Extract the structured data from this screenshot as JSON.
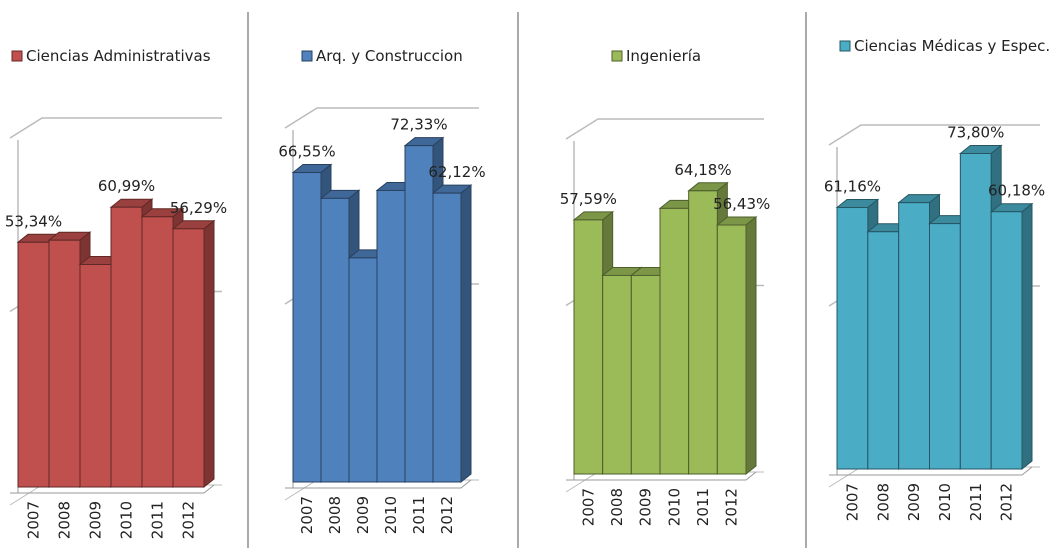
{
  "chart_data": [
    {
      "type": "bar3d",
      "categories": [
        "2007",
        "2008",
        "2009",
        "2010",
        "2011",
        "2012"
      ],
      "series": [
        {
          "name": "Ciencias Administrativas",
          "color": "#c0504d",
          "values": [
            53.34,
            53.8,
            48.5,
            60.99,
            58.9,
            56.29
          ],
          "value_labels": [
            "53,34%",
            null,
            null,
            "60,99%",
            null,
            "56,29%"
          ]
        }
      ],
      "ylim": [
        0,
        80
      ]
    },
    {
      "type": "bar3d",
      "categories": [
        "2007",
        "2008",
        "2009",
        "2010",
        "2011",
        "2012"
      ],
      "series": [
        {
          "name": "Arq. y Construccion",
          "color": "#4f81bd",
          "values": [
            66.55,
            61.0,
            48.2,
            62.7,
            72.33,
            62.12
          ],
          "value_labels": [
            "66,55%",
            null,
            null,
            null,
            "72,33%",
            "62,12%"
          ]
        }
      ],
      "ylim": [
        0,
        80
      ]
    },
    {
      "type": "bar3d",
      "categories": [
        "2007",
        "2008",
        "2009",
        "2010",
        "2011",
        "2012"
      ],
      "series": [
        {
          "name": "Ingeniería",
          "color": "#9bbb59",
          "values": [
            57.59,
            45.0,
            45.0,
            60.2,
            64.18,
            56.43
          ],
          "value_labels": [
            "57,59%",
            null,
            null,
            null,
            "64,18%",
            "56,43%"
          ]
        }
      ],
      "ylim": [
        0,
        80
      ]
    },
    {
      "type": "bar3d",
      "categories": [
        "2007",
        "2008",
        "2009",
        "2010",
        "2011",
        "2012"
      ],
      "series": [
        {
          "name": "Ciencias Médicas y Espec.",
          "color": "#4bacc6",
          "values": [
            61.16,
            55.5,
            62.3,
            57.4,
            73.8,
            60.18
          ],
          "value_labels": [
            "61,16%",
            null,
            null,
            null,
            "73,80%",
            "60,18%"
          ]
        }
      ],
      "ylim": [
        0,
        80
      ]
    }
  ]
}
